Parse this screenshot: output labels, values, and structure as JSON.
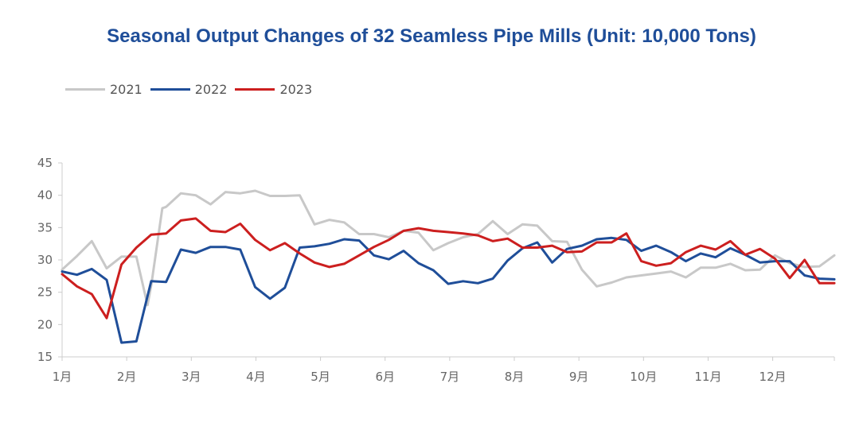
{
  "chart_data": {
    "type": "line",
    "title": "Seasonal Output Changes of 32 Seamless Pipe Mills (Unit: 10,000 Tons)",
    "xlabel": "",
    "ylabel": "",
    "ylim": [
      15,
      45
    ],
    "yticks": [
      15,
      20,
      25,
      30,
      35,
      40,
      45
    ],
    "xlim": [
      0,
      52
    ],
    "xtick_labels": [
      "1月",
      "2月",
      "3月",
      "4月",
      "5月",
      "6月",
      "7月",
      "8月",
      "9月",
      "10月",
      "11月",
      "12月"
    ],
    "xtick_positions": [
      0,
      4.35,
      8.7,
      13.05,
      17.4,
      21.75,
      26.1,
      30.45,
      34.8,
      39.15,
      43.5,
      47.85
    ],
    "legend": "top-left",
    "grid": false,
    "series": [
      {
        "name": "2021",
        "color": "#c8c8c8",
        "x": [
          0,
          1,
          2,
          3,
          4,
          5,
          5.75,
          6,
          6.75,
          7,
          8,
          9,
          10,
          11,
          12,
          13,
          14,
          15,
          16,
          17,
          18,
          19,
          20,
          21,
          22,
          23,
          24,
          25,
          26,
          27,
          28,
          29,
          30,
          31,
          32,
          33,
          34,
          35,
          36,
          37,
          38,
          39,
          40,
          41,
          42,
          43,
          44,
          45,
          46,
          47,
          48,
          49,
          50,
          51,
          52
        ],
        "values": [
          28.5,
          30.6,
          32.9,
          28.7,
          30.5,
          30.5,
          23.0,
          26.0,
          38.0,
          38.2,
          40.3,
          40.0,
          38.6,
          40.5,
          40.3,
          40.7,
          39.9,
          39.9,
          40.0,
          35.5,
          36.2,
          35.8,
          34.0,
          34.0,
          33.5,
          34.5,
          34.2,
          31.5,
          32.6,
          33.5,
          34.0,
          36.0,
          34.0,
          35.5,
          35.3,
          32.9,
          32.8,
          28.5,
          25.9,
          26.5,
          27.3,
          27.6,
          27.9,
          28.2,
          27.3,
          28.8,
          28.8,
          29.4,
          28.4,
          28.5,
          30.7,
          29.5,
          28.9,
          29.0,
          30.7
        ]
      },
      {
        "name": "2022",
        "color": "#1f4e99",
        "x": [
          0,
          1,
          2,
          3,
          4,
          5,
          6,
          7,
          8,
          9,
          10,
          11,
          12,
          13,
          14,
          15,
          16,
          17,
          18,
          19,
          20,
          21,
          22,
          23,
          24,
          25,
          26,
          27,
          28,
          29,
          30,
          31,
          32,
          33,
          34,
          35,
          36,
          37,
          38,
          39,
          40,
          41,
          42,
          43,
          44,
          45,
          46,
          47,
          48,
          49,
          50,
          51,
          52
        ],
        "values": [
          28.2,
          27.7,
          28.6,
          26.9,
          17.2,
          17.4,
          26.7,
          26.6,
          31.6,
          31.1,
          32.0,
          32.0,
          31.6,
          25.8,
          24.0,
          25.7,
          31.9,
          32.1,
          32.5,
          33.2,
          33.0,
          30.7,
          30.1,
          31.4,
          29.5,
          28.4,
          26.3,
          26.7,
          26.4,
          27.1,
          29.9,
          31.8,
          32.7,
          29.6,
          31.7,
          32.2,
          33.2,
          33.4,
          33.1,
          31.4,
          32.2,
          31.2,
          29.8,
          31.0,
          30.4,
          31.8,
          30.8,
          29.6,
          29.8,
          29.8,
          27.6,
          27.1,
          27.0
        ]
      },
      {
        "name": "2023",
        "color": "#cc1f1f",
        "x": [
          0,
          1,
          2,
          3,
          4,
          5,
          6,
          7,
          8,
          9,
          10,
          11,
          12,
          13,
          14,
          15,
          16,
          17,
          18,
          19,
          20,
          21,
          22,
          23,
          24,
          25,
          26,
          27,
          28,
          29,
          30,
          31,
          32,
          33,
          34,
          35,
          36,
          37,
          38,
          39,
          40,
          41,
          42,
          43,
          44,
          45,
          46,
          47,
          48,
          49,
          50,
          51,
          52
        ],
        "values": [
          27.8,
          25.9,
          24.7,
          21.0,
          29.3,
          31.9,
          33.9,
          34.1,
          36.1,
          36.4,
          34.5,
          34.3,
          35.6,
          33.1,
          31.5,
          32.6,
          31.0,
          29.6,
          28.9,
          29.4,
          30.7,
          32.0,
          33.1,
          34.5,
          34.9,
          34.5,
          34.3,
          34.1,
          33.8,
          32.9,
          33.3,
          31.9,
          31.9,
          32.2,
          31.2,
          31.3,
          32.7,
          32.7,
          34.1,
          29.8,
          29.1,
          29.5,
          31.2,
          32.2,
          31.6,
          32.9,
          30.8,
          31.7,
          30.2,
          27.2,
          30.0,
          26.4,
          26.4
        ]
      }
    ]
  }
}
